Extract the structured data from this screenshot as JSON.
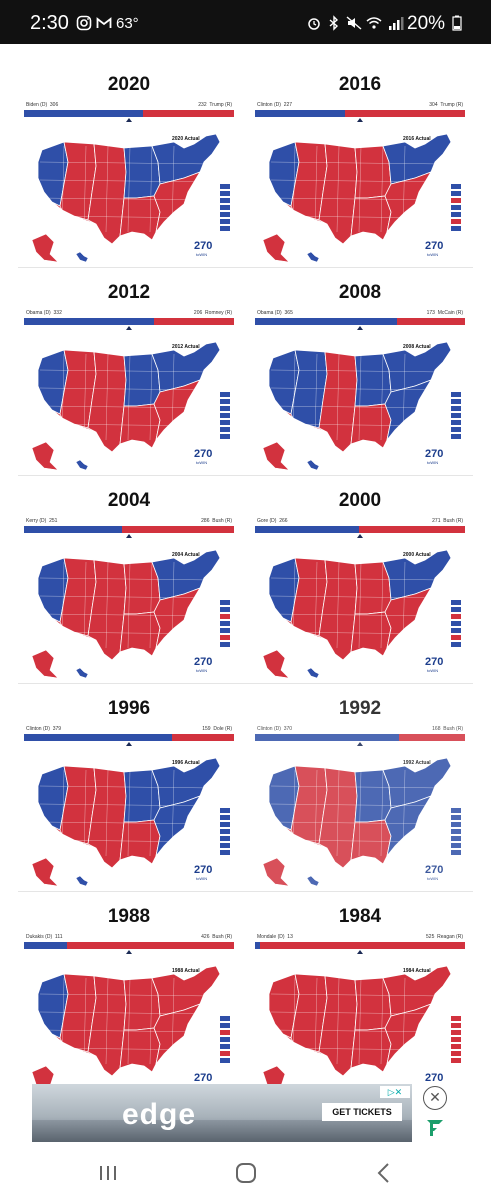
{
  "status_bar": {
    "time": "2:30",
    "temperature": "63°",
    "battery": "20%",
    "icons": [
      "instagram-icon",
      "gmail-icon",
      "alarm-icon",
      "bluetooth-icon",
      "mute-icon",
      "wifi-icon",
      "signal-icon",
      "battery-icon"
    ]
  },
  "colors": {
    "dem": "#2f4fa8",
    "rep": "#d2323e",
    "dem_light": "#5b76c2",
    "rep_light": "#e15660"
  },
  "maps": [
    {
      "year": "2020",
      "dem_label": "Biden (D)",
      "dem_ev": "306",
      "rep_label": "Trump (R)",
      "rep_ev": "232",
      "dem_share": 0.569,
      "actual": "2020 Actual",
      "winner": "dem"
    },
    {
      "year": "2016",
      "dem_label": "Clinton (D)",
      "dem_ev": "227",
      "rep_label": "Trump (R)",
      "rep_ev": "304",
      "dem_share": 0.428,
      "actual": "2016 Actual",
      "winner": "rep"
    },
    {
      "year": "2012",
      "dem_label": "Obama (D)",
      "dem_ev": "332",
      "rep_label": "Romney (R)",
      "rep_ev": "206",
      "dem_share": 0.617,
      "actual": "2012 Actual",
      "winner": "dem"
    },
    {
      "year": "2008",
      "dem_label": "Obama (D)",
      "dem_ev": "365",
      "rep_label": "McCain (R)",
      "rep_ev": "173",
      "dem_share": 0.678,
      "actual": "2008 Actual",
      "winner": "dem"
    },
    {
      "year": "2004",
      "dem_label": "Kerry (D)",
      "dem_ev": "251",
      "rep_label": "Bush (R)",
      "rep_ev": "286",
      "dem_share": 0.467,
      "actual": "2004 Actual",
      "winner": "rep"
    },
    {
      "year": "2000",
      "dem_label": "Gore (D)",
      "dem_ev": "266",
      "rep_label": "Bush (R)",
      "rep_ev": "271",
      "dem_share": 0.495,
      "actual": "2000 Actual",
      "winner": "rep"
    },
    {
      "year": "1996",
      "dem_label": "Clinton (D)",
      "dem_ev": "379",
      "rep_label": "Dole (R)",
      "rep_ev": "159",
      "dem_share": 0.704,
      "actual": "1996 Actual",
      "winner": "dem"
    },
    {
      "year": "1992",
      "dem_label": "Clinton (D)",
      "dem_ev": "370",
      "rep_label": "Bush (R)",
      "rep_ev": "168",
      "dem_share": 0.688,
      "actual": "1992 Actual",
      "winner": "dem"
    },
    {
      "year": "1988",
      "dem_label": "Dukakis (D)",
      "dem_ev": "111",
      "rep_label": "Bush (R)",
      "rep_ev": "426",
      "dem_share": 0.207,
      "actual": "1988 Actual",
      "winner": "rep"
    },
    {
      "year": "1984",
      "dem_label": "Mondale (D)",
      "dem_ev": "13",
      "rep_label": "Reagan (R)",
      "rep_ev": "525",
      "dem_share": 0.024,
      "actual": "1984 Actual",
      "winner": "rep"
    }
  ],
  "logo": {
    "number": "270",
    "suffix": "toWIN"
  },
  "ad": {
    "brand_text": "edge",
    "cta_label": "GET TICKETS",
    "adchoices_label": "▷✕"
  },
  "nav": {
    "recent_icon": "recent-apps-icon",
    "home_icon": "home-icon",
    "back_icon": "back-icon"
  }
}
